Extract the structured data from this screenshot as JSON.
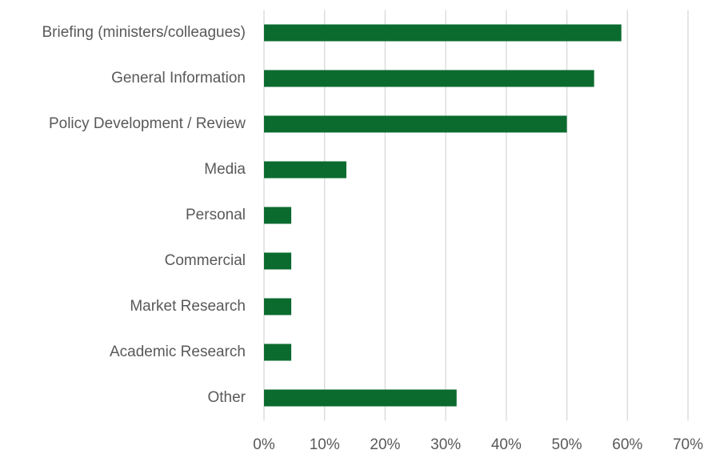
{
  "chart_data": {
    "type": "bar",
    "orientation": "horizontal",
    "categories": [
      "Briefing (ministers/colleagues)",
      "General Information",
      "Policy Development / Review",
      "Media",
      "Personal",
      "Commercial",
      "Market Research",
      "Academic Research",
      "Other"
    ],
    "values": [
      59,
      54.5,
      50,
      13.6,
      4.5,
      4.5,
      4.5,
      4.5,
      31.8
    ],
    "color": "#0b6b2f",
    "xlim": [
      0,
      70
    ],
    "xticks": [
      {
        "value": 0,
        "label": "0%"
      },
      {
        "value": 10,
        "label": "10%"
      },
      {
        "value": 20,
        "label": "20%"
      },
      {
        "value": 30,
        "label": "30%"
      },
      {
        "value": 40,
        "label": "40%"
      },
      {
        "value": 50,
        "label": "50%"
      },
      {
        "value": 60,
        "label": "60%"
      },
      {
        "value": 70,
        "label": "70%"
      }
    ],
    "grid": true
  }
}
